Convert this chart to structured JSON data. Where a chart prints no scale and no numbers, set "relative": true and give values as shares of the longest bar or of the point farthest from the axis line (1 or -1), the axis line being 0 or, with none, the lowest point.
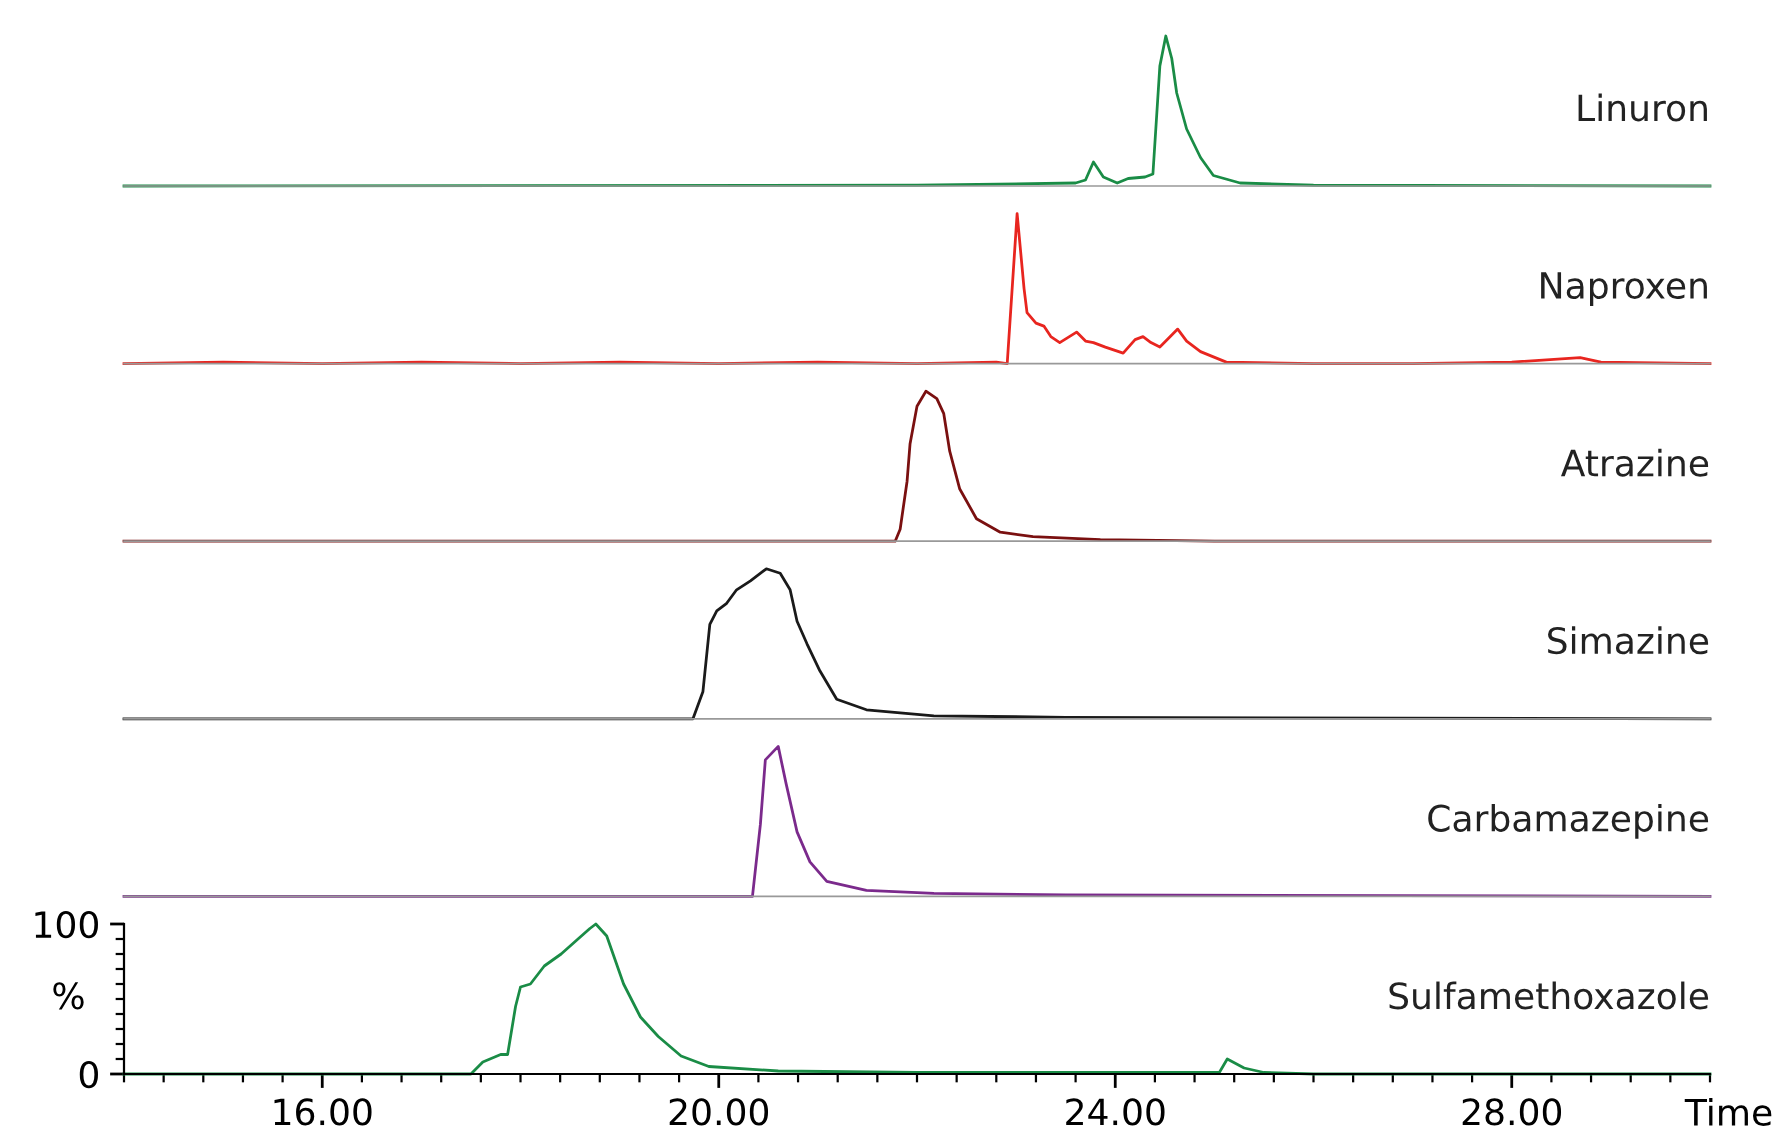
{
  "chart_data": [
    {
      "type": "line",
      "relative": true,
      "xlim": [
        14,
        30
      ],
      "tick_labels": false,
      "series": [
        {
          "name": "Linuron",
          "color": "#1a8c46",
          "x": [
            14,
            22.0,
            23.6,
            23.7,
            23.78,
            23.88,
            24.02,
            24.13,
            24.3,
            24.38,
            24.45,
            24.51,
            24.57,
            24.62,
            24.72,
            24.86,
            24.99,
            25.26,
            26,
            30
          ],
          "values": [
            0,
            0.005,
            0.02,
            0.04,
            0.16,
            0.06,
            0.02,
            0.05,
            0.06,
            0.08,
            0.8,
            1,
            0.85,
            0.62,
            0.38,
            0.19,
            0.07,
            0.02,
            0.005,
            0
          ]
        }
      ]
    },
    {
      "type": "line",
      "relative": true,
      "xlim": [
        14,
        30
      ],
      "tick_labels": false,
      "series": [
        {
          "name": "Naproxen",
          "color": "#e8251f",
          "x": [
            14,
            15,
            16,
            17,
            18,
            19,
            20,
            21,
            22,
            22.8,
            22.91,
            23.01,
            23.08,
            23.11,
            23.2,
            23.28,
            23.35,
            23.44,
            23.61,
            23.7,
            23.78,
            23.9,
            24.08,
            24.2,
            24.28,
            24.36,
            24.45,
            24.63,
            24.72,
            24.86,
            25.12,
            26,
            27,
            28,
            28.69,
            28.9,
            30
          ],
          "values": [
            0,
            0.01,
            0,
            0.01,
            0,
            0.01,
            0,
            0.01,
            0,
            0.01,
            0,
            1,
            0.5,
            0.34,
            0.27,
            0.25,
            0.18,
            0.14,
            0.21,
            0.15,
            0.14,
            0.11,
            0.07,
            0.16,
            0.18,
            0.14,
            0.11,
            0.23,
            0.15,
            0.08,
            0.01,
            0,
            0,
            0.01,
            0.04,
            0.01,
            0
          ]
        }
      ]
    },
    {
      "type": "line",
      "relative": true,
      "xlim": [
        14,
        30
      ],
      "tick_labels": false,
      "series": [
        {
          "name": "Atrazine",
          "color": "#7a1010",
          "x": [
            14,
            21.78,
            21.83,
            21.9,
            21.93,
            22.0,
            22.09,
            22.2,
            22.27,
            22.33,
            22.43,
            22.6,
            22.84,
            23.17,
            23.85,
            25,
            30
          ],
          "values": [
            0,
            0,
            0.08,
            0.4,
            0.65,
            0.9,
            1,
            0.95,
            0.85,
            0.6,
            0.35,
            0.15,
            0.06,
            0.03,
            0.01,
            0,
            0
          ]
        }
      ]
    },
    {
      "type": "line",
      "relative": true,
      "xlim": [
        14,
        30
      ],
      "tick_labels": false,
      "series": [
        {
          "name": "Simazine",
          "color": "#1a1a1a",
          "x": [
            14,
            19.74,
            19.84,
            19.91,
            19.98,
            20.08,
            20.18,
            20.32,
            20.48,
            20.62,
            20.72,
            20.79,
            20.89,
            21.02,
            21.19,
            21.49,
            22.17,
            23.5,
            30
          ],
          "values": [
            0,
            0,
            0.18,
            0.63,
            0.72,
            0.77,
            0.86,
            0.92,
            1,
            0.97,
            0.86,
            0.65,
            0.5,
            0.32,
            0.13,
            0.06,
            0.02,
            0.01,
            0
          ]
        }
      ]
    },
    {
      "type": "line",
      "relative": true,
      "xlim": [
        14,
        30
      ],
      "tick_labels": false,
      "series": [
        {
          "name": "Carbamazepine",
          "color": "#7b2a8c",
          "x": [
            14,
            20.34,
            20.42,
            20.47,
            20.6,
            20.68,
            20.79,
            20.92,
            21.09,
            21.49,
            22.17,
            23.5,
            30
          ],
          "values": [
            0,
            0,
            0.48,
            0.91,
            1,
            0.75,
            0.43,
            0.23,
            0.1,
            0.04,
            0.02,
            0.01,
            0
          ]
        }
      ]
    },
    {
      "type": "line",
      "xlim": [
        14,
        30
      ],
      "ylim": [
        0,
        100
      ],
      "yticks": [
        0,
        100
      ],
      "ylabel": "%",
      "xlabel": "Time",
      "xticks": [
        {
          "value": 16,
          "label": "16.00"
        },
        {
          "value": 20,
          "label": "20.00"
        },
        {
          "value": 24,
          "label": "24.00"
        },
        {
          "value": 28,
          "label": "28.00"
        }
      ],
      "series": [
        {
          "name": "Sulfamethoxazole",
          "color": "#1a8c46",
          "x": [
            14,
            17.5,
            17.62,
            17.8,
            17.87,
            17.95,
            18.0,
            18.1,
            18.24,
            18.41,
            18.58,
            18.7,
            18.76,
            18.87,
            19.04,
            19.21,
            19.39,
            19.62,
            19.9,
            20.6,
            22.0,
            24.3,
            25.05,
            25.13,
            25.3,
            25.5,
            26.0,
            30.0
          ],
          "values": [
            0,
            0,
            8,
            13,
            13,
            45,
            58,
            60,
            72,
            80,
            90,
            97,
            100,
            92,
            60,
            38,
            25,
            12,
            5,
            2,
            1,
            1,
            1,
            10,
            4,
            1,
            0,
            0
          ]
        }
      ]
    }
  ]
}
